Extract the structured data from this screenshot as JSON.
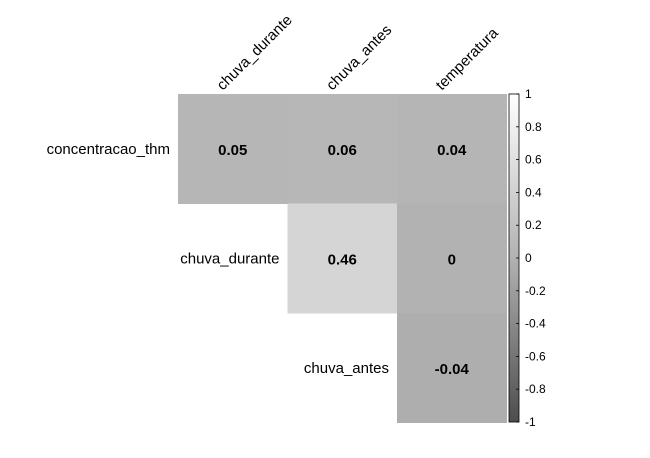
{
  "chart_data": {
    "type": "heatmap",
    "title": "",
    "columns": [
      "chuva_durante",
      "chuva_antes",
      "temperatura"
    ],
    "rows": [
      "concentracao_thm",
      "chuva_durante",
      "chuva_antes"
    ],
    "cells": [
      {
        "row": 0,
        "col": 0,
        "value": 0.05,
        "label": "0.05"
      },
      {
        "row": 0,
        "col": 1,
        "value": 0.06,
        "label": "0.06"
      },
      {
        "row": 0,
        "col": 2,
        "value": 0.04,
        "label": "0.04"
      },
      {
        "row": 1,
        "col": 1,
        "value": 0.46,
        "label": "0.46"
      },
      {
        "row": 1,
        "col": 2,
        "value": 0.0,
        "label": "0"
      },
      {
        "row": 2,
        "col": 2,
        "value": -0.04,
        "label": "-0.04"
      }
    ],
    "colorbar": {
      "range": [
        -1,
        1
      ],
      "ticks": [
        "1",
        "0.8",
        "0.6",
        "0.4",
        "0.2",
        "0",
        "-0.2",
        "-0.4",
        "-0.6",
        "-0.8",
        "-1"
      ],
      "tick_values": [
        1,
        0.8,
        0.6,
        0.4,
        0.2,
        0,
        -0.2,
        -0.4,
        -0.6,
        -0.8,
        -1
      ],
      "color_low": "#4d4d4d",
      "color_mid": "#b2b2b2",
      "color_high": "#ffffff"
    }
  }
}
